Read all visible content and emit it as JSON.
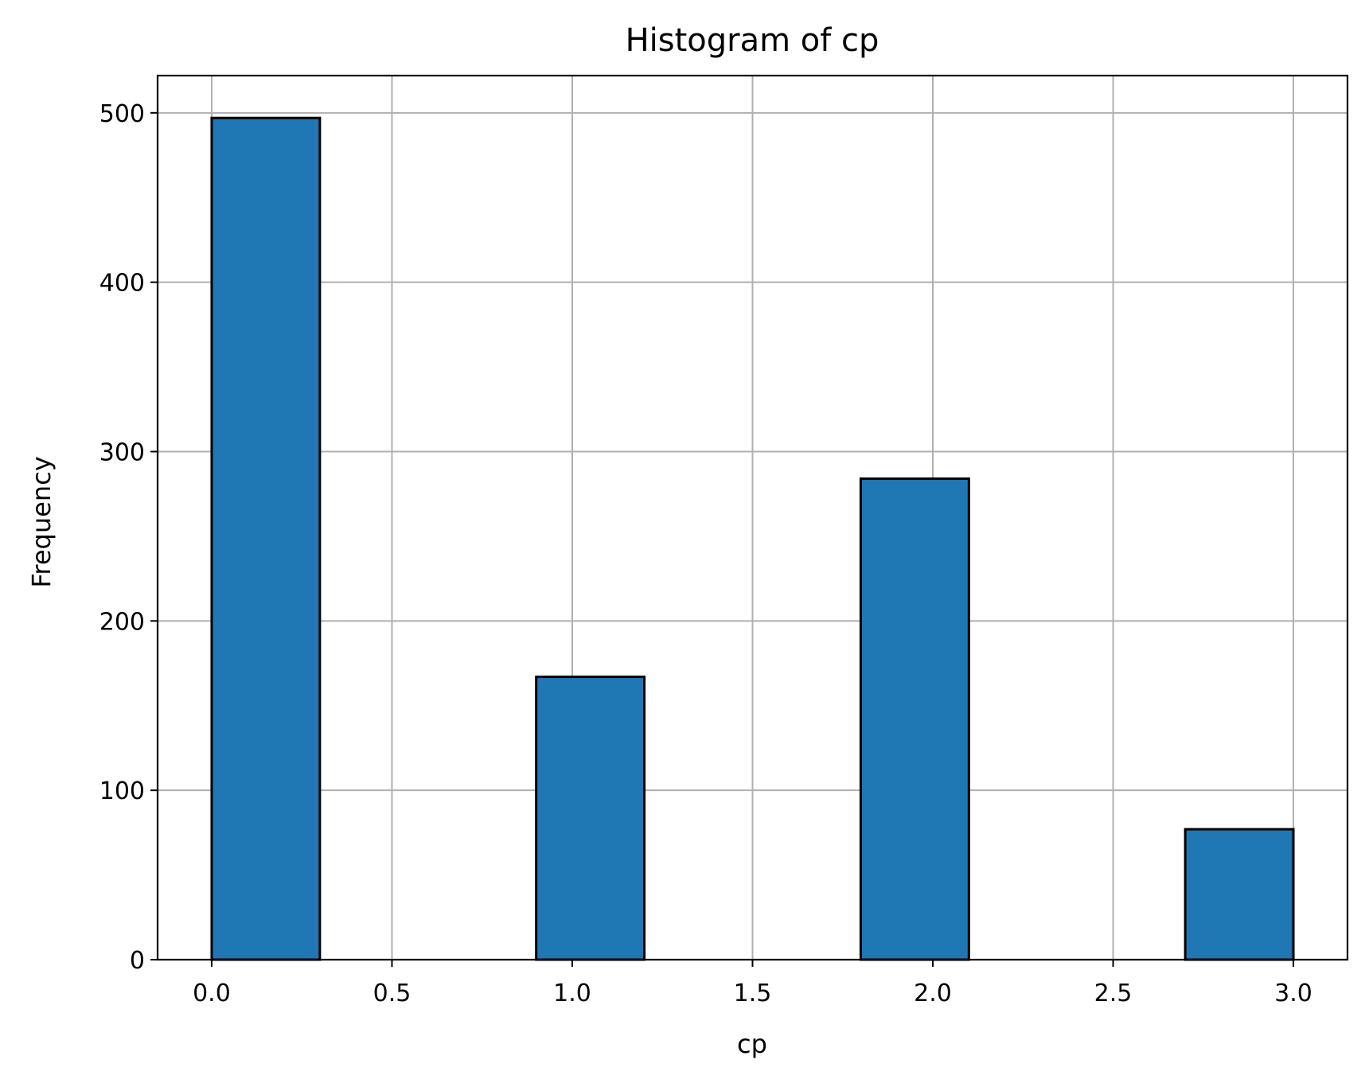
{
  "chart_data": {
    "type": "bar",
    "title": "Histogram of cp",
    "xlabel": "cp",
    "ylabel": "Frequency",
    "xlim": [
      -0.15,
      3.15
    ],
    "ylim": [
      0,
      522
    ],
    "grid": true,
    "bar_color": "#1f77b4",
    "edge_color": "#000000",
    "bins": [
      {
        "x0": 0.0,
        "x1": 0.3,
        "value": 497
      },
      {
        "x0": 0.3,
        "x1": 0.6,
        "value": 0
      },
      {
        "x0": 0.6,
        "x1": 0.9,
        "value": 0
      },
      {
        "x0": 0.9,
        "x1": 1.2,
        "value": 167
      },
      {
        "x0": 1.2,
        "x1": 1.5,
        "value": 0
      },
      {
        "x0": 1.5,
        "x1": 1.8,
        "value": 0
      },
      {
        "x0": 1.8,
        "x1": 2.1,
        "value": 284
      },
      {
        "x0": 2.1,
        "x1": 2.4,
        "value": 0
      },
      {
        "x0": 2.4,
        "x1": 2.7,
        "value": 0
      },
      {
        "x0": 2.7,
        "x1": 3.0,
        "value": 77
      }
    ],
    "x_ticks": [
      {
        "value": 0.0,
        "label": "0.0"
      },
      {
        "value": 0.5,
        "label": "0.5"
      },
      {
        "value": 1.0,
        "label": "1.0"
      },
      {
        "value": 1.5,
        "label": "1.5"
      },
      {
        "value": 2.0,
        "label": "2.0"
      },
      {
        "value": 2.5,
        "label": "2.5"
      },
      {
        "value": 3.0,
        "label": "3.0"
      }
    ],
    "y_ticks": [
      {
        "value": 0,
        "label": "0"
      },
      {
        "value": 100,
        "label": "100"
      },
      {
        "value": 200,
        "label": "200"
      },
      {
        "value": 300,
        "label": "300"
      },
      {
        "value": 400,
        "label": "400"
      },
      {
        "value": 500,
        "label": "500"
      }
    ]
  }
}
